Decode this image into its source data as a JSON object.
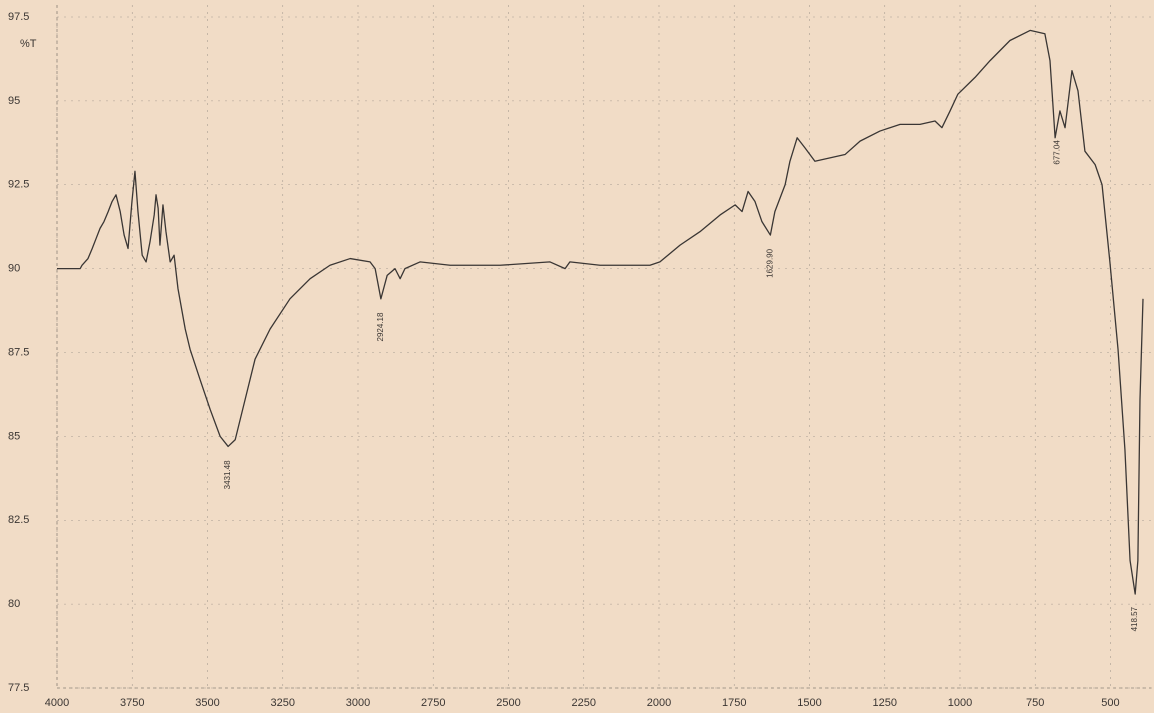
{
  "chart_data": {
    "type": "line",
    "ylabel": "%T",
    "x": [
      4000,
      3923,
      3917,
      3897,
      3883,
      3870,
      3857,
      3844,
      3830,
      3817,
      3804,
      3790,
      3777,
      3764,
      3751,
      3741,
      3731,
      3717,
      3704,
      3691,
      3677,
      3671,
      3664,
      3658,
      3648,
      3638,
      3624,
      3611,
      3598,
      3574,
      3558,
      3525,
      3491,
      3458,
      3431.5,
      3408,
      3375,
      3342,
      3292,
      3226,
      3159,
      3093,
      3026,
      2960,
      2943,
      2924,
      2903,
      2877,
      2860,
      2844,
      2794,
      2694,
      2528,
      2362,
      2312,
      2296,
      2196,
      2030,
      1997,
      1930,
      1864,
      1797,
      1747,
      1724,
      1704,
      1681,
      1658,
      1630,
      1615,
      1581,
      1565,
      1541,
      1515,
      1482,
      1432,
      1382,
      1332,
      1266,
      1199,
      1133,
      1083,
      1060,
      1033,
      1007,
      950,
      900,
      834,
      767,
      718,
      701,
      684,
      668,
      651,
      628,
      608,
      585,
      551,
      528,
      502,
      475,
      452,
      435,
      418,
      409,
      402,
      392
    ],
    "series": [
      {
        "color": "#3a3634",
        "values": [
          90.0,
          90.0,
          90.1,
          90.3,
          90.6,
          90.9,
          91.2,
          91.4,
          91.7,
          92.0,
          92.2,
          91.7,
          91.0,
          90.6,
          92.0,
          92.9,
          91.7,
          90.4,
          90.2,
          90.8,
          91.6,
          92.2,
          91.8,
          90.7,
          91.9,
          91.1,
          90.2,
          90.4,
          89.4,
          88.2,
          87.6,
          86.7,
          85.8,
          85.0,
          84.7,
          84.9,
          86.1,
          87.3,
          88.2,
          89.1,
          89.7,
          90.1,
          90.3,
          90.2,
          90.0,
          89.1,
          89.8,
          90.0,
          89.7,
          90.0,
          90.2,
          90.1,
          90.1,
          90.2,
          90.0,
          90.2,
          90.1,
          90.1,
          90.2,
          90.7,
          91.1,
          91.6,
          91.9,
          91.7,
          92.3,
          92.0,
          91.4,
          91.0,
          91.7,
          92.5,
          93.2,
          93.9,
          93.6,
          93.2,
          93.3,
          93.4,
          93.8,
          94.1,
          94.3,
          94.3,
          94.4,
          94.2,
          94.7,
          95.2,
          95.7,
          96.2,
          96.8,
          97.1,
          97.0,
          96.2,
          93.9,
          94.7,
          94.2,
          95.9,
          95.3,
          93.5,
          93.1,
          92.5,
          90.2,
          87.6,
          84.6,
          81.3,
          80.3,
          81.3,
          86.1,
          89.1
        ]
      }
    ],
    "xlim": [
      4000,
      390
    ],
    "ylim": [
      77.5,
      97.5
    ],
    "xticks": [
      4000,
      3750,
      3500,
      3250,
      3000,
      2750,
      2500,
      2250,
      2000,
      1750,
      1500,
      1250,
      1000,
      750,
      500
    ],
    "yticks": [
      77.5,
      80,
      82.5,
      85,
      87.5,
      90,
      92.5,
      95,
      97.5
    ],
    "grid": true,
    "annotations": [
      {
        "value": 3431.48,
        "label": "3431.48"
      },
      {
        "value": 2924.18,
        "label": "2924.18"
      },
      {
        "value": 1629.9,
        "label": "1629.90"
      },
      {
        "value": 677.04,
        "label": "677.04"
      },
      {
        "value": 418.57,
        "label": "418.57"
      }
    ]
  }
}
